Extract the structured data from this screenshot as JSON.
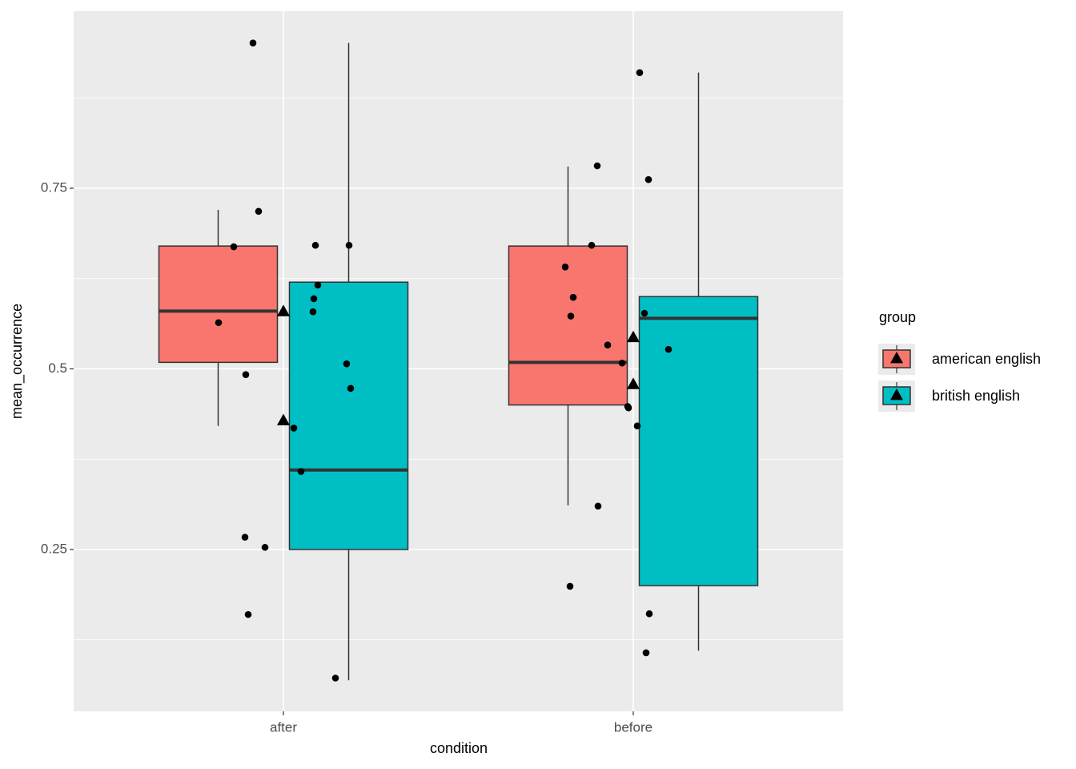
{
  "chart_data": {
    "type": "box",
    "x_label": "condition",
    "y_label": "mean_occurrence",
    "legend_title": "group",
    "legend_position": "right",
    "categories": [
      "after",
      "before"
    ],
    "ylim": [
      0.026,
      0.995
    ],
    "yticks": [
      0.25,
      0.5,
      0.75
    ],
    "minor_yticks": [
      0.125,
      0.375,
      0.625,
      0.875
    ],
    "grid": true,
    "series": [
      {
        "name": "american english",
        "color": "#F8766D",
        "whisker_low": [
          0.421,
          0.311
        ],
        "q1": [
          0.509,
          0.45
        ],
        "median": [
          0.58,
          0.509
        ],
        "q3": [
          0.67,
          0.67
        ],
        "whisker_high": [
          0.72,
          0.78
        ],
        "mean": [
          0.58,
          0.544
        ]
      },
      {
        "name": "british english",
        "color": "#00BFC4",
        "whisker_low": [
          0.069,
          0.11
        ],
        "q1": [
          0.25,
          0.2
        ],
        "median": [
          0.36,
          0.57
        ],
        "q3": [
          0.62,
          0.6
        ],
        "whisker_high": [
          0.951,
          0.91
        ],
        "mean": [
          0.429,
          0.479
        ]
      }
    ],
    "points": [
      {
        "category": "after",
        "values": [
          0.951,
          0.718,
          0.669,
          0.564,
          0.492,
          0.267,
          0.253,
          0.16,
          0.671,
          0.671,
          0.616,
          0.597,
          0.579,
          0.507,
          0.473,
          0.418,
          0.358,
          0.072
        ]
      },
      {
        "category": "before",
        "values": [
          0.91,
          0.781,
          0.762,
          0.671,
          0.641,
          0.599,
          0.573,
          0.577,
          0.533,
          0.527,
          0.508,
          0.448,
          0.446,
          0.421,
          0.31,
          0.199,
          0.161,
          0.107
        ]
      }
    ]
  }
}
